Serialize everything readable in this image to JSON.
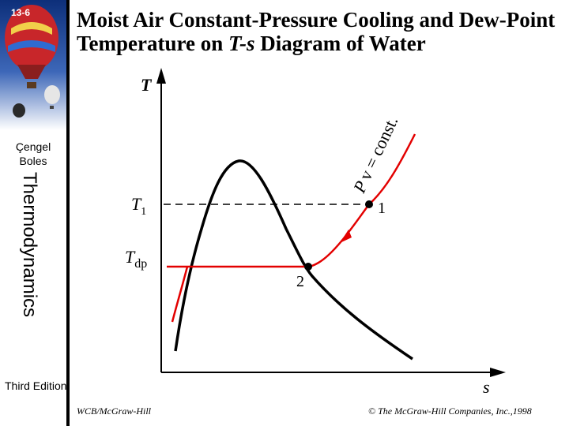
{
  "slide": {
    "number": "13-6",
    "title_main": "Moist Air Constant-Pressure Cooling and Dew-Point Temperature on ",
    "title_italic": "T-s",
    "title_end": " Diagram of Water"
  },
  "sidebar": {
    "author_1": "Çengel",
    "author_2": "Boles",
    "book": "Thermodynamics",
    "edition": "Third Edition"
  },
  "diagram": {
    "axis_y": "T",
    "axis_x": "s",
    "label_t1": "T",
    "label_t1_sub": "1",
    "label_tdp": "T",
    "label_tdp_sub": "dp",
    "point_1": "1",
    "point_2": "2",
    "curve_label_P": "P",
    "curve_label_rest": "v = const.",
    "colors": {
      "process": "#e30000",
      "dome": "#000000",
      "dashed": "#000000"
    }
  },
  "footer": {
    "publisher": "WCB/McGraw-Hill",
    "copyright": "© The McGraw-Hill Companies, Inc.,1998"
  }
}
